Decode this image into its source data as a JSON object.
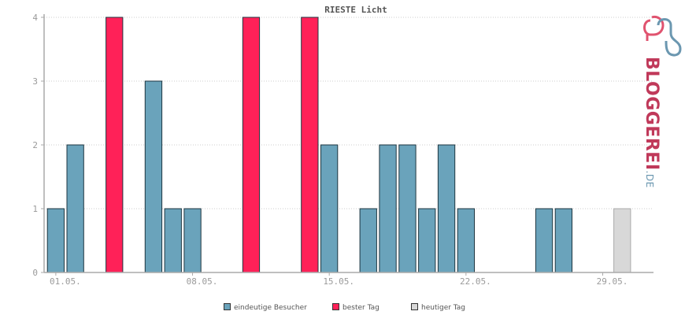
{
  "chart_data": {
    "type": "bar",
    "title": "RIESTE Licht",
    "y_ticks": [
      "0",
      "1",
      "2",
      "3",
      "4"
    ],
    "ylim": [
      0,
      4
    ],
    "x_tick_labels": [
      {
        "label": "01.05.",
        "day": 1
      },
      {
        "label": "08.05.",
        "day": 8
      },
      {
        "label": "15.05.",
        "day": 15
      },
      {
        "label": "22.05.",
        "day": 22
      },
      {
        "label": "29.05.",
        "day": 29
      }
    ],
    "days": [
      1,
      2,
      3,
      4,
      5,
      6,
      7,
      8,
      9,
      10,
      11,
      12,
      13,
      14,
      15,
      16,
      17,
      18,
      19,
      20,
      21,
      22,
      23,
      24,
      25,
      26,
      27,
      28,
      29,
      30,
      31
    ],
    "values": [
      1,
      2,
      0,
      4,
      0,
      3,
      1,
      1,
      0,
      0,
      4,
      0,
      0,
      4,
      2,
      0,
      1,
      2,
      2,
      1,
      2,
      1,
      0,
      0,
      0,
      1,
      1,
      0,
      0,
      1,
      0
    ],
    "bar_kind": [
      "v",
      "v",
      "v",
      "b",
      "v",
      "v",
      "v",
      "v",
      "v",
      "v",
      "b",
      "v",
      "v",
      "b",
      "v",
      "v",
      "v",
      "v",
      "v",
      "v",
      "v",
      "v",
      "v",
      "v",
      "v",
      "v",
      "v",
      "v",
      "v",
      "t",
      "v"
    ],
    "grid": true,
    "legend_position": "bottom-center",
    "legend": [
      {
        "key": "v",
        "label": "eindeutige Besucher",
        "color": "#6aa3bb"
      },
      {
        "key": "b",
        "label": "bester Tag",
        "color": "#ff2158"
      },
      {
        "key": "t",
        "label": "heutiger Tag",
        "color": "#d8d8d8"
      }
    ]
  },
  "logo": {
    "brand": "BLOGGEREI",
    "suffix": ".DE"
  }
}
